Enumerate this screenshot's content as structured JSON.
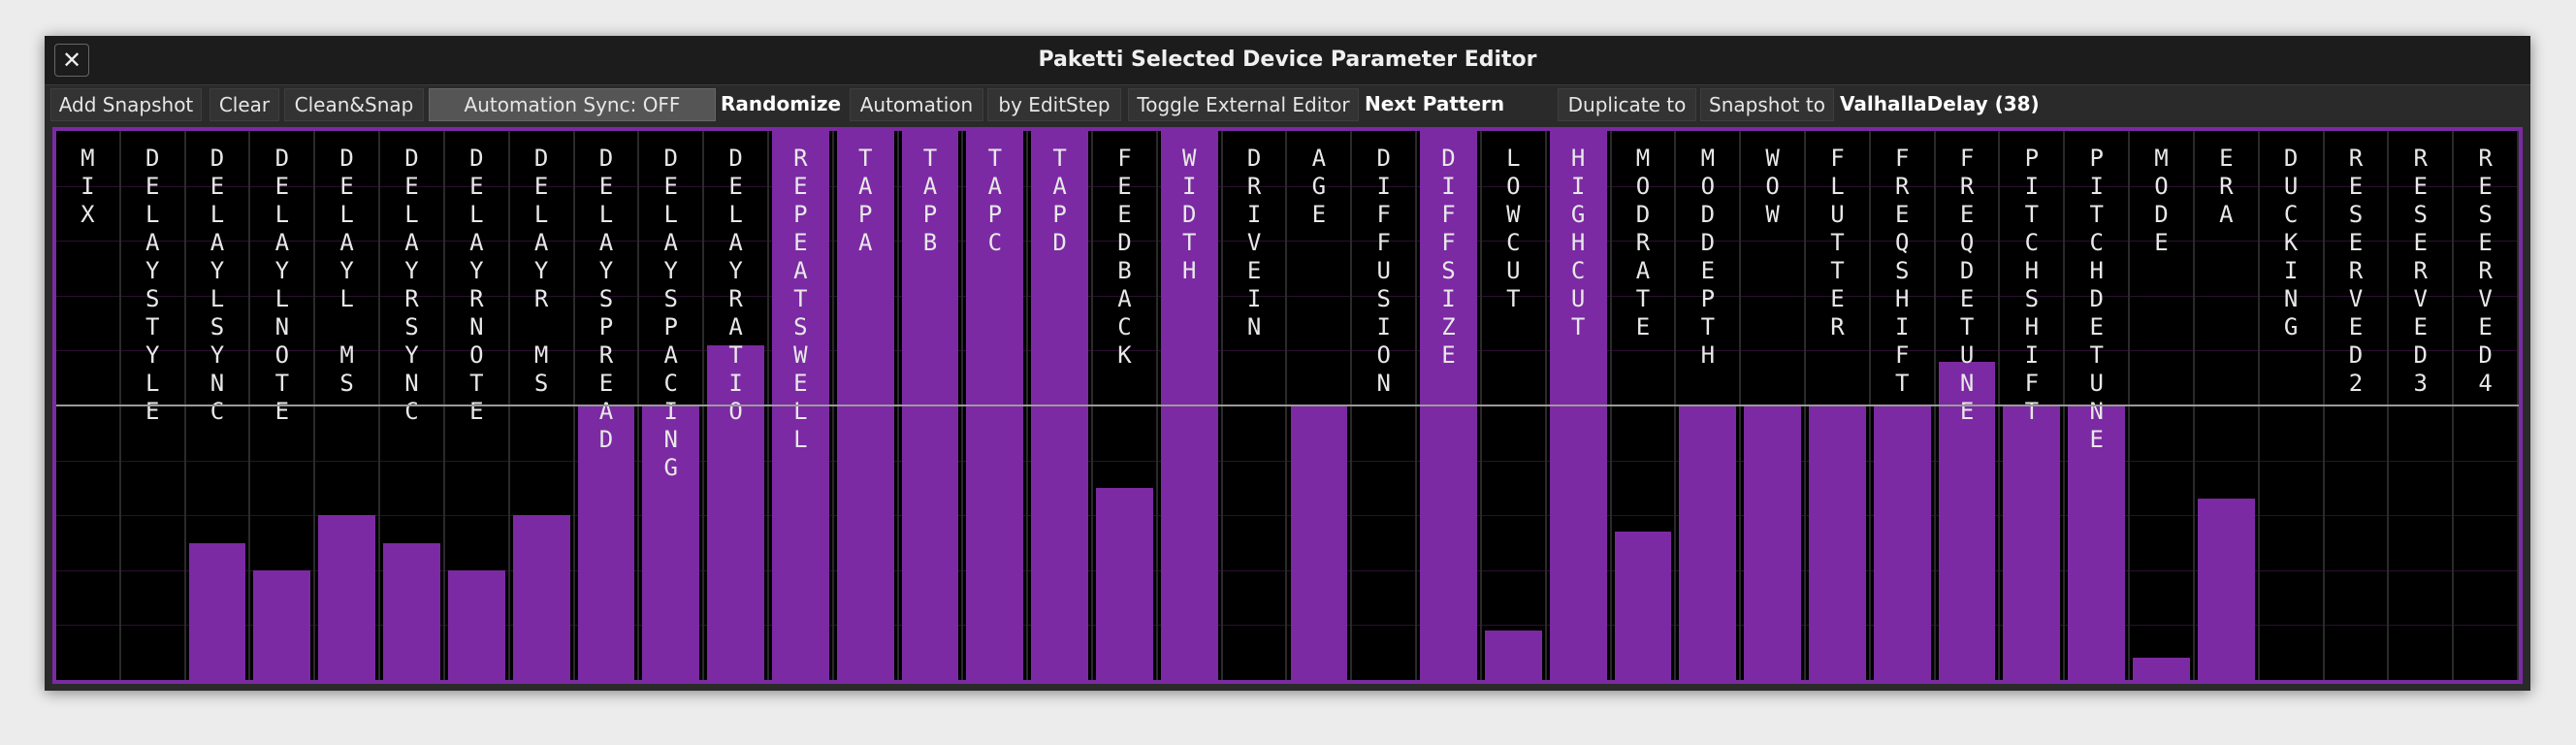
{
  "window": {
    "title": "Paketti Selected Device Parameter Editor",
    "close": "✕"
  },
  "toolbar": {
    "buttons": [
      "Add Snapshot",
      "Clear",
      "Clean&Snap",
      "Automation Sync: OFF",
      "Randomize",
      "Automation",
      "by EditStep",
      "Toggle External Editor",
      "Next Pattern",
      "Duplicate to",
      "Snapshot to"
    ],
    "device": "ValhallaDelay (38)"
  },
  "editor": {
    "parameters": [
      {
        "name": "MIX",
        "value": 0
      },
      {
        "name": "DELAYSTYLE",
        "value": 0
      },
      {
        "name": "DELAYLSYNC",
        "value": 0.25
      },
      {
        "name": "DELAYLNOTE",
        "value": 0.2
      },
      {
        "name": "DELAYL MS",
        "value": 0.3
      },
      {
        "name": "DELAYRSYNC",
        "value": 0.25
      },
      {
        "name": "DELAYRNOTE",
        "value": 0.2
      },
      {
        "name": "DELAYR MS",
        "value": 0.3
      },
      {
        "name": "DELAYSPREAD",
        "value": 0.5
      },
      {
        "name": "DELAYSPACING",
        "value": 0.5
      },
      {
        "name": "DELAYRATIO",
        "value": 0.61
      },
      {
        "name": "REPEATSWELL",
        "value": 1
      },
      {
        "name": "TAPA",
        "value": 1
      },
      {
        "name": "TAPB",
        "value": 1
      },
      {
        "name": "TAPC",
        "value": 1
      },
      {
        "name": "TAPD",
        "value": 1
      },
      {
        "name": "FEEDBACK",
        "value": 0.35
      },
      {
        "name": "WIDTH",
        "value": 1
      },
      {
        "name": "DRIVEIN",
        "value": 0
      },
      {
        "name": "AGE",
        "value": 0.5
      },
      {
        "name": "DIFFUSION",
        "value": 0
      },
      {
        "name": "DIFFSIZE",
        "value": 1
      },
      {
        "name": "LOWCUT",
        "value": 0.09
      },
      {
        "name": "HIGHCUT",
        "value": 1
      },
      {
        "name": "MODRATE",
        "value": 0.27
      },
      {
        "name": "MODDEPTH",
        "value": 0.5
      },
      {
        "name": "WOW",
        "value": 0.5
      },
      {
        "name": "FLUTTER",
        "value": 0.5
      },
      {
        "name": "FREQSHIFT",
        "value": 0.5
      },
      {
        "name": "FREQDETUNE",
        "value": 0.58
      },
      {
        "name": "PITCHSHIFT",
        "value": 0.5
      },
      {
        "name": "PITCHDETUNE",
        "value": 0.5
      },
      {
        "name": "MODE",
        "value": 0.04
      },
      {
        "name": "ERA",
        "value": 0.33
      },
      {
        "name": "DUCKING",
        "value": 0
      },
      {
        "name": "RESERVED2",
        "value": 0
      },
      {
        "name": "RESERVED3",
        "value": 0
      },
      {
        "name": "RESERVED4",
        "value": 0
      }
    ]
  }
}
